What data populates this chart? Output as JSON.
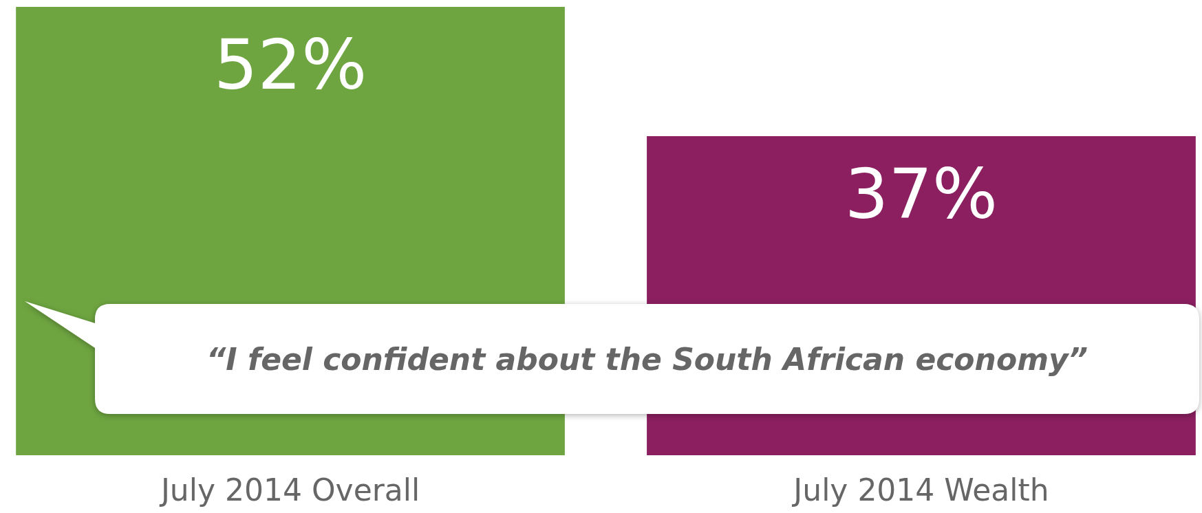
{
  "chart_data": {
    "type": "bar",
    "categories": [
      "July 2014 Overall",
      "July 2014 Wealth"
    ],
    "values": [
      52,
      37
    ],
    "colors": [
      "#6ea540",
      "#8b1f60"
    ],
    "value_labels": [
      "52%",
      "37%"
    ],
    "annotations": [
      "“I feel confident about the South African economy”"
    ]
  }
}
